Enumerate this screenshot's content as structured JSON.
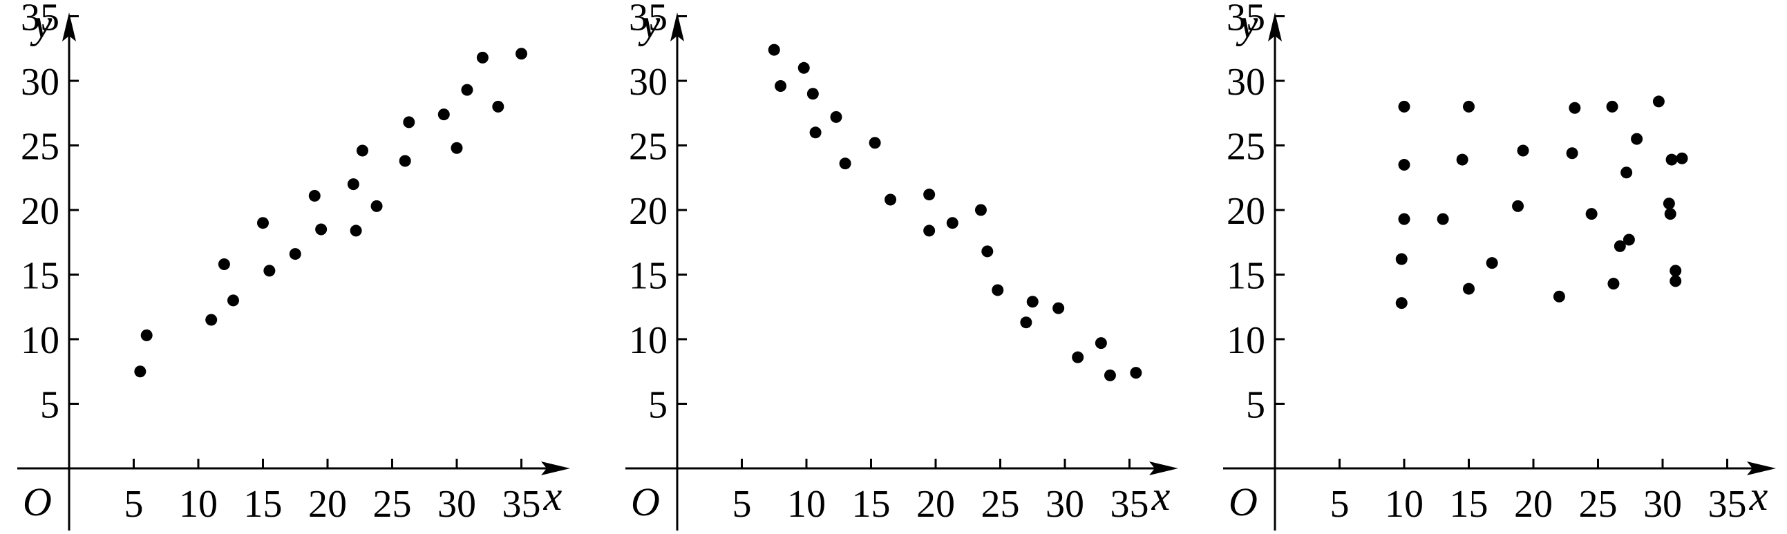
{
  "chart_data": [
    {
      "type": "scatter",
      "xlabel": "x",
      "ylabel": "y",
      "origin_label": "O",
      "xticks": [
        5,
        10,
        15,
        20,
        25,
        30,
        35
      ],
      "yticks": [
        5,
        10,
        15,
        20,
        25,
        30,
        35
      ],
      "xlim": [
        0,
        40
      ],
      "ylim": [
        0,
        40
      ],
      "grid": false,
      "points": [
        [
          6,
          10.3
        ],
        [
          5.5,
          7.5
        ],
        [
          11,
          11.5
        ],
        [
          12,
          15.8
        ],
        [
          12.7,
          13
        ],
        [
          15,
          19
        ],
        [
          15.5,
          15.3
        ],
        [
          17.5,
          16.6
        ],
        [
          19,
          21.1
        ],
        [
          19.5,
          18.5
        ],
        [
          22,
          22
        ],
        [
          22.2,
          18.4
        ],
        [
          22.7,
          24.6
        ],
        [
          23.8,
          20.3
        ],
        [
          26,
          23.8
        ],
        [
          26.3,
          26.8
        ],
        [
          29,
          27.4
        ],
        [
          30,
          24.8
        ],
        [
          30.8,
          29.3
        ],
        [
          32,
          31.8
        ],
        [
          33.2,
          28
        ],
        [
          35,
          32.1
        ]
      ]
    },
    {
      "type": "scatter",
      "xlabel": "x",
      "ylabel": "y",
      "origin_label": "O",
      "xticks": [
        5,
        10,
        15,
        20,
        25,
        30,
        35
      ],
      "yticks": [
        5,
        10,
        15,
        20,
        25,
        30,
        35
      ],
      "xlim": [
        0,
        40
      ],
      "ylim": [
        0,
        40
      ],
      "grid": false,
      "points": [
        [
          7.5,
          32.4
        ],
        [
          8,
          29.6
        ],
        [
          9.8,
          31
        ],
        [
          10.5,
          29
        ],
        [
          10.7,
          26
        ],
        [
          12.3,
          27.2
        ],
        [
          13,
          23.6
        ],
        [
          15.3,
          25.2
        ],
        [
          16.5,
          20.8
        ],
        [
          19.5,
          21.2
        ],
        [
          19.5,
          18.4
        ],
        [
          21.3,
          19
        ],
        [
          23.5,
          20
        ],
        [
          24,
          16.8
        ],
        [
          24.8,
          13.8
        ],
        [
          27,
          11.3
        ],
        [
          27.5,
          12.9
        ],
        [
          29.5,
          12.4
        ],
        [
          31,
          8.6
        ],
        [
          32.8,
          9.7
        ],
        [
          33.5,
          7.2
        ],
        [
          35.5,
          7.4
        ]
      ]
    },
    {
      "type": "scatter",
      "xlabel": "x",
      "ylabel": "y",
      "origin_label": "O",
      "xticks": [
        5,
        10,
        15,
        20,
        25,
        30,
        35
      ],
      "yticks": [
        5,
        10,
        15,
        20,
        25,
        30,
        35
      ],
      "xlim": [
        0,
        40
      ],
      "ylim": [
        0,
        40
      ],
      "grid": false,
      "points": [
        [
          10,
          28
        ],
        [
          10,
          23.5
        ],
        [
          10,
          19.3
        ],
        [
          9.8,
          16.2
        ],
        [
          9.8,
          12.8
        ],
        [
          13,
          19.3
        ],
        [
          14.5,
          23.9
        ],
        [
          15,
          28
        ],
        [
          15,
          13.9
        ],
        [
          16.8,
          15.9
        ],
        [
          18.8,
          20.3
        ],
        [
          19.2,
          24.6
        ],
        [
          22,
          13.3
        ],
        [
          23,
          24.4
        ],
        [
          23.2,
          27.9
        ],
        [
          24.5,
          19.7
        ],
        [
          26.1,
          28
        ],
        [
          26.2,
          14.3
        ],
        [
          26.7,
          17.2
        ],
        [
          27.2,
          22.9
        ],
        [
          27.4,
          17.7
        ],
        [
          28,
          25.5
        ],
        [
          29.7,
          28.4
        ],
        [
          30.5,
          20.5
        ],
        [
          30.6,
          19.7
        ],
        [
          30.7,
          23.9
        ],
        [
          31,
          15.3
        ],
        [
          31,
          14.5
        ],
        [
          31.5,
          24
        ]
      ]
    }
  ]
}
